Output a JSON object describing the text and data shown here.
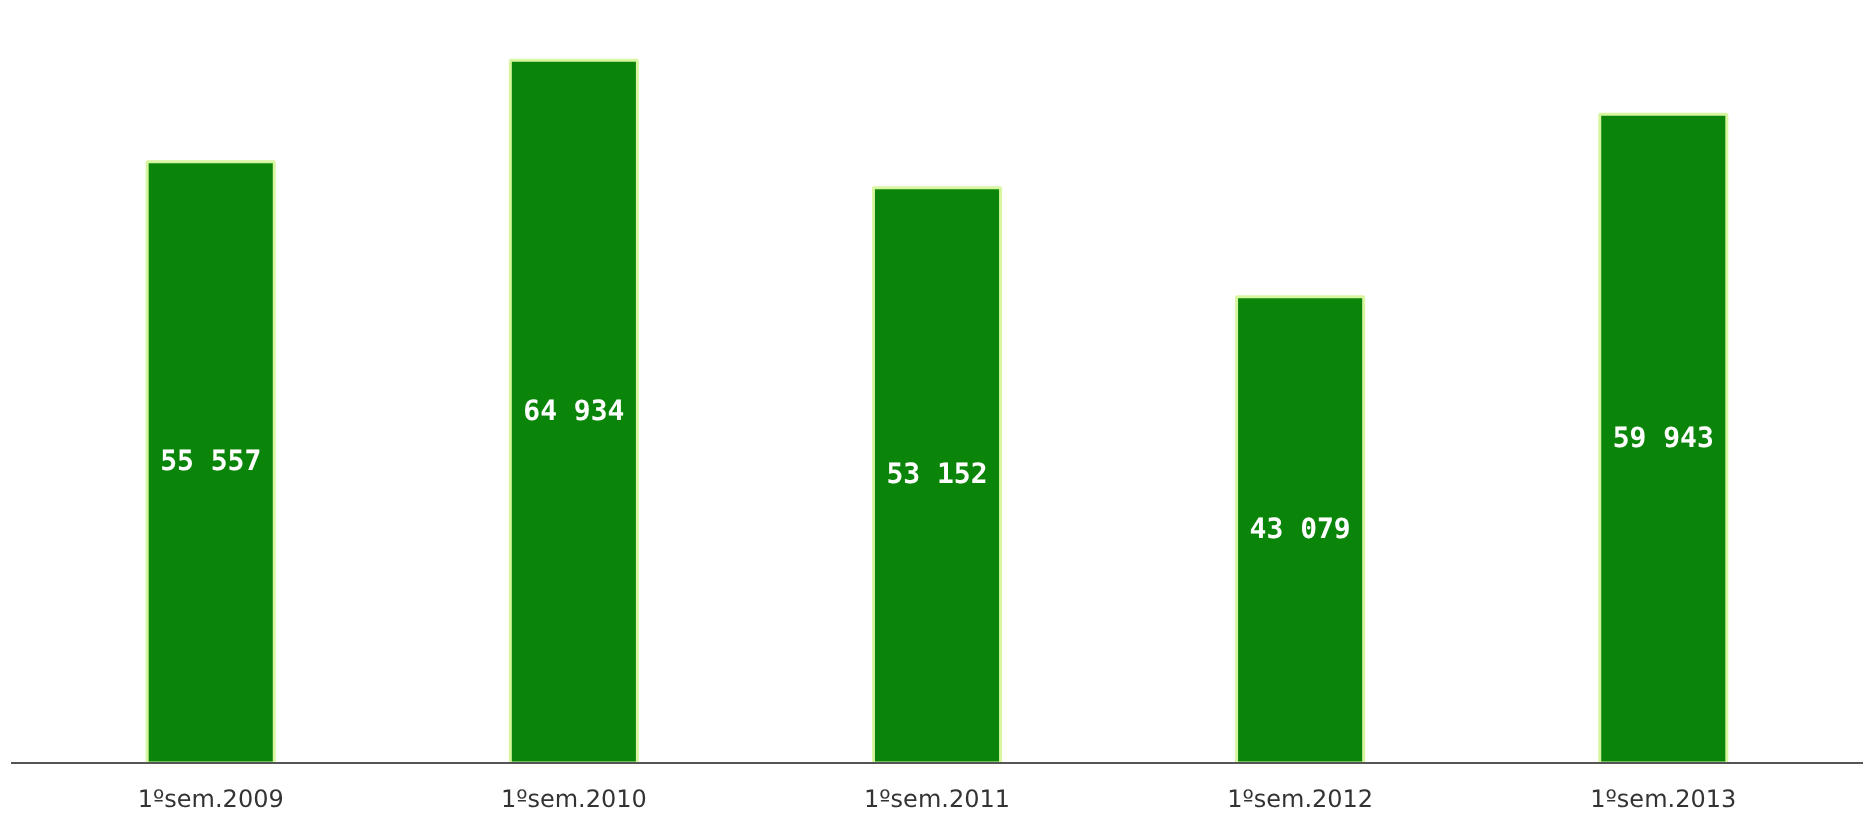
{
  "chart_data": {
    "type": "bar",
    "categories": [
      "1ºsem.2009",
      "1ºsem.2010",
      "1ºsem.2011",
      "1ºsem.2012",
      "1ºsem.2013"
    ],
    "values": [
      55557,
      64934,
      53152,
      43079,
      59943
    ],
    "value_labels": [
      "55 557",
      "64 934",
      "53 152",
      "43 079",
      "59 943"
    ],
    "color": "#0a850a",
    "grid": false
  }
}
